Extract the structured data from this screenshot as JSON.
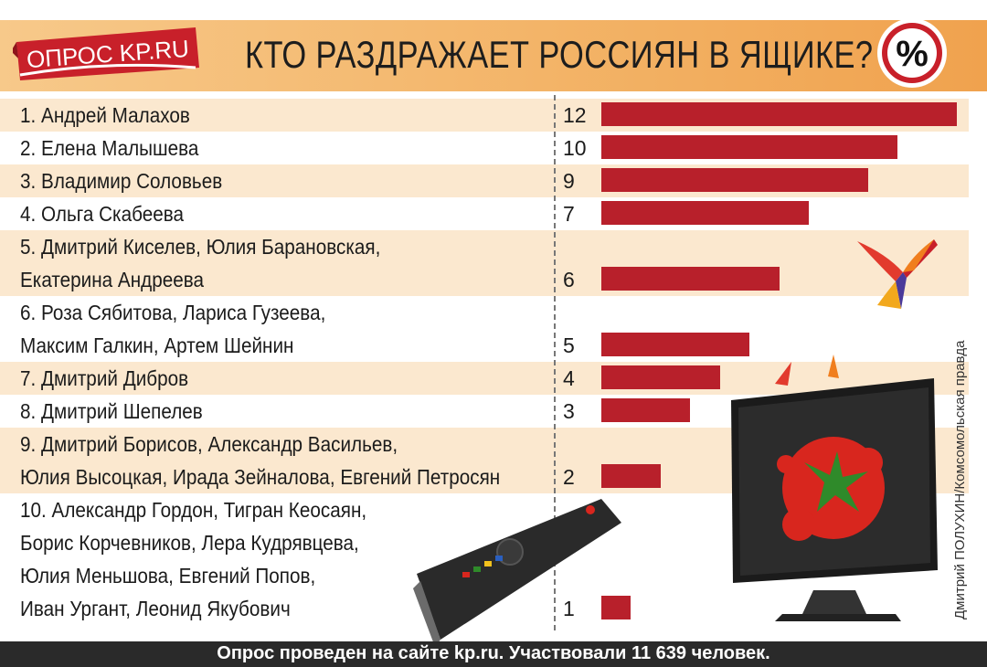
{
  "header": {
    "badge_text": "ОПРОС KP.RU",
    "title": "КТО РАЗДРАЖАЕТ РОССИЯН В ЯЩИКЕ?",
    "percent_symbol": "%"
  },
  "footer": {
    "note": "Опрос проведен на сайте kp.ru. Участвовали 11 639 человек."
  },
  "credit": "Дмитрий ПОЛУХИН/Комсомольская правда",
  "colors": {
    "bar": "#b8202b",
    "badge": "#c8202a",
    "row_alt": "#fbe8cf",
    "header_band": "#f3b468",
    "footer_band": "#2a2a2a"
  },
  "chart_data": {
    "type": "bar",
    "orientation": "horizontal",
    "title": "КТО РАЗДРАЖАЕТ РОССИЯН В ЯЩИКЕ?",
    "unit": "%",
    "xlim": [
      0,
      12
    ],
    "categories": [
      [
        "1. Андрей Малахов"
      ],
      [
        "2. Елена Малышева"
      ],
      [
        "3. Владимир Соловьев"
      ],
      [
        "4. Ольга Скабеева"
      ],
      [
        "5. Дмитрий Киселев, Юлия Барановская,",
        "Екатерина Андреева"
      ],
      [
        "6. Роза Сябитова, Лариса Гузеева,",
        "Максим Галкин, Артем Шейнин"
      ],
      [
        "7. Дмитрий Дибров"
      ],
      [
        "8. Дмитрий Шепелев"
      ],
      [
        "9. Дмитрий Борисов, Александр Васильев,",
        "Юлия Высоцкая, Ирада Зейналова, Евгений Петросян"
      ],
      [
        "10. Александр Гордон, Тигран Кеосаян,",
        " Борис Корчевников, Лера Кудрявцева,",
        "Юлия Меньшова, Евгений Попов,",
        "Иван Ургант, Леонид Якубович"
      ]
    ],
    "values": [
      12,
      10,
      9,
      7,
      6,
      5,
      4,
      3,
      2,
      1
    ]
  }
}
